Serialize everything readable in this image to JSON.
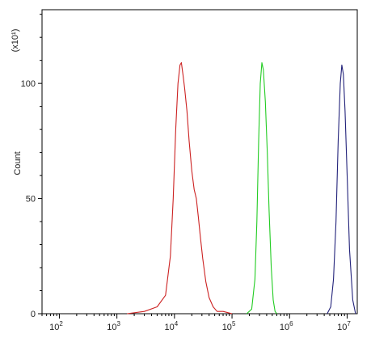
{
  "chart_data": {
    "type": "line",
    "title": "",
    "xlabel": "",
    "ylabel": "Count",
    "y_multiplier_label": "(x10¹)",
    "x_scale": "log",
    "xlim": [
      50,
      15000000
    ],
    "ylim": [
      0,
      132
    ],
    "x_ticks": [
      {
        "value": 100,
        "base": "10",
        "exp": "2"
      },
      {
        "value": 1000,
        "base": "10",
        "exp": "3"
      },
      {
        "value": 10000,
        "base": "10",
        "exp": "4"
      },
      {
        "value": 100000,
        "base": "10",
        "exp": "5"
      },
      {
        "value": 1000000,
        "base": "10",
        "exp": "6"
      },
      {
        "value": 10000000,
        "base": "10",
        "exp": "7"
      }
    ],
    "y_ticks": [
      {
        "value": 0,
        "label": "0"
      },
      {
        "value": 50,
        "label": "50"
      },
      {
        "value": 100,
        "label": "100"
      }
    ],
    "grid": false,
    "legend": "none",
    "series": [
      {
        "color": "#cc2222",
        "x": [
          1500,
          3000,
          5000,
          7000,
          8500,
          9500,
          10500,
          11500,
          12500,
          13200,
          14000,
          15000,
          16500,
          18000,
          20000,
          22000,
          24000,
          26000,
          28000,
          31000,
          35000,
          40000,
          47000,
          55000,
          70000,
          100000
        ],
        "y": [
          0,
          1,
          3,
          8,
          25,
          50,
          80,
          100,
          108,
          109,
          104,
          98,
          88,
          75,
          62,
          54,
          50,
          42,
          34,
          24,
          14,
          7,
          3,
          1,
          1,
          0
        ]
      },
      {
        "color": "#22cc22",
        "x": [
          180000,
          220000,
          250000,
          270000,
          290000,
          310000,
          330000,
          350000,
          380000,
          410000,
          440000,
          480000,
          520000,
          560000,
          600000
        ],
        "y": [
          0,
          2,
          15,
          40,
          75,
          100,
          109,
          106,
          92,
          70,
          45,
          20,
          6,
          1,
          0
        ]
      },
      {
        "color": "#22227a",
        "x": [
          4500000,
          5200000,
          5800000,
          6400000,
          7000000,
          7600000,
          8100000,
          8600000,
          9200000,
          10000000,
          11000000,
          12500000,
          14000000
        ],
        "y": [
          0,
          3,
          15,
          40,
          75,
          100,
          108,
          104,
          88,
          60,
          28,
          6,
          0
        ]
      }
    ]
  }
}
